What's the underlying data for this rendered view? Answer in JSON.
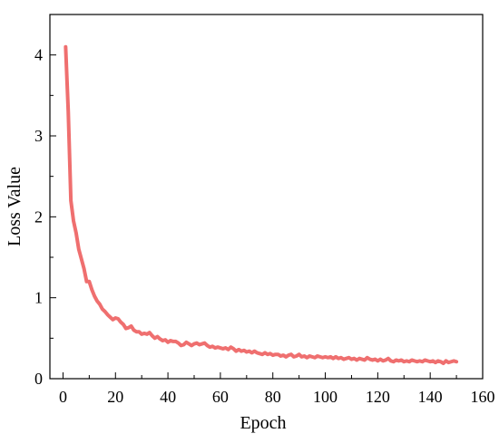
{
  "chart_data": {
    "type": "line",
    "title": "",
    "xlabel": "Epoch",
    "ylabel": "Loss Value",
    "xlim": [
      -5,
      160
    ],
    "ylim": [
      0,
      4.5
    ],
    "xticks": [
      0,
      20,
      40,
      60,
      80,
      100,
      120,
      140,
      160
    ],
    "yticks": [
      0,
      1,
      2,
      3,
      4
    ],
    "grid": false,
    "legend": "none",
    "line_color": "#EF6F6F",
    "series": [
      {
        "x": [
          1,
          2,
          3,
          4,
          5,
          6,
          7,
          8,
          9,
          10,
          11,
          12,
          13,
          14,
          15,
          16,
          17,
          18,
          19,
          20,
          21,
          22,
          23,
          24,
          25,
          26,
          27,
          28,
          29,
          30,
          31,
          32,
          33,
          34,
          35,
          36,
          37,
          38,
          39,
          40,
          41,
          42,
          43,
          44,
          45,
          46,
          47,
          48,
          49,
          50,
          51,
          52,
          53,
          54,
          55,
          56,
          57,
          58,
          59,
          60,
          61,
          62,
          63,
          64,
          65,
          66,
          67,
          68,
          69,
          70,
          71,
          72,
          73,
          74,
          75,
          76,
          77,
          78,
          79,
          80,
          81,
          82,
          83,
          84,
          85,
          86,
          87,
          88,
          89,
          90,
          91,
          92,
          93,
          94,
          95,
          96,
          97,
          98,
          99,
          100,
          101,
          102,
          103,
          104,
          105,
          106,
          107,
          108,
          109,
          110,
          111,
          112,
          113,
          114,
          115,
          116,
          117,
          118,
          119,
          120,
          121,
          122,
          123,
          124,
          125,
          126,
          127,
          128,
          129,
          130,
          131,
          132,
          133,
          134,
          135,
          136,
          137,
          138,
          139,
          140,
          141,
          142,
          143,
          144,
          145,
          146,
          147,
          148,
          149,
          150
        ],
        "values": [
          4.1,
          3.3,
          2.2,
          1.95,
          1.8,
          1.6,
          1.48,
          1.36,
          1.2,
          1.2,
          1.1,
          1.02,
          0.96,
          0.92,
          0.86,
          0.83,
          0.79,
          0.76,
          0.73,
          0.75,
          0.74,
          0.7,
          0.67,
          0.62,
          0.63,
          0.65,
          0.6,
          0.58,
          0.58,
          0.55,
          0.56,
          0.55,
          0.57,
          0.53,
          0.5,
          0.52,
          0.49,
          0.47,
          0.48,
          0.45,
          0.47,
          0.46,
          0.46,
          0.44,
          0.41,
          0.42,
          0.45,
          0.43,
          0.41,
          0.43,
          0.44,
          0.42,
          0.43,
          0.44,
          0.41,
          0.39,
          0.4,
          0.38,
          0.39,
          0.38,
          0.37,
          0.38,
          0.36,
          0.39,
          0.37,
          0.34,
          0.36,
          0.34,
          0.35,
          0.33,
          0.34,
          0.32,
          0.34,
          0.32,
          0.31,
          0.3,
          0.32,
          0.3,
          0.31,
          0.29,
          0.3,
          0.3,
          0.28,
          0.29,
          0.27,
          0.29,
          0.3,
          0.27,
          0.28,
          0.3,
          0.27,
          0.28,
          0.26,
          0.28,
          0.27,
          0.26,
          0.28,
          0.27,
          0.26,
          0.27,
          0.26,
          0.27,
          0.25,
          0.27,
          0.25,
          0.26,
          0.24,
          0.25,
          0.26,
          0.24,
          0.25,
          0.23,
          0.25,
          0.24,
          0.23,
          0.26,
          0.24,
          0.23,
          0.24,
          0.22,
          0.24,
          0.22,
          0.23,
          0.25,
          0.22,
          0.21,
          0.23,
          0.22,
          0.23,
          0.21,
          0.22,
          0.21,
          0.23,
          0.22,
          0.21,
          0.22,
          0.21,
          0.23,
          0.22,
          0.21,
          0.22,
          0.2,
          0.22,
          0.21,
          0.19,
          0.22,
          0.2,
          0.21,
          0.22,
          0.21
        ]
      }
    ]
  }
}
